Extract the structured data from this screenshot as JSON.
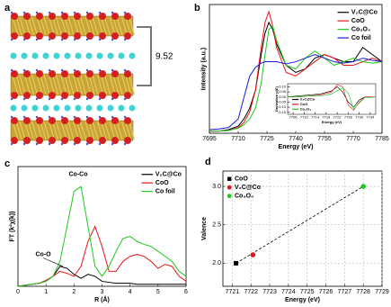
{
  "panel_a": {
    "label": "a",
    "annotation": "9.52"
  },
  "chart_data": [
    {
      "type": "line",
      "label": "b",
      "xlabel": "Energy (eV)",
      "ylabel": "Intensity (a.u.)",
      "xlim": [
        7695,
        7785
      ],
      "xticks": [
        7695,
        7710,
        7725,
        7740,
        7755,
        7770,
        7785
      ],
      "ylim": [
        0,
        1.8
      ],
      "legend": "upper right",
      "x": [
        7695,
        7700,
        7705,
        7710,
        7713,
        7716,
        7719,
        7722,
        7724,
        7726,
        7728,
        7730,
        7735,
        7740,
        7745,
        7750,
        7755,
        7760,
        7765,
        7770,
        7775,
        7780,
        7785
      ],
      "series": [
        {
          "name": "V₂C@Co",
          "color": "#000000",
          "values": [
            0.03,
            0.03,
            0.05,
            0.1,
            0.2,
            0.35,
            0.6,
            1.1,
            1.4,
            1.55,
            1.45,
            1.25,
            0.95,
            0.85,
            0.9,
            1.05,
            1.1,
            1.05,
            1.0,
            1.0,
            1.2,
            1.1,
            1.0
          ]
        },
        {
          "name": "CoO",
          "color": "#e8141b",
          "values": [
            0.03,
            0.03,
            0.04,
            0.08,
            0.15,
            0.3,
            0.6,
            1.2,
            1.55,
            1.7,
            1.5,
            1.2,
            0.85,
            0.8,
            0.9,
            1.0,
            1.1,
            1.05,
            0.95,
            0.95,
            1.0,
            1.05,
            1.0
          ]
        },
        {
          "name": "Co₃O₄",
          "color": "#1ec81e",
          "values": [
            0.03,
            0.03,
            0.04,
            0.07,
            0.12,
            0.2,
            0.35,
            0.7,
            1.1,
            1.45,
            1.5,
            1.3,
            0.95,
            0.9,
            1.05,
            1.15,
            1.05,
            0.95,
            1.0,
            1.05,
            1.0,
            0.98,
            1.0
          ]
        },
        {
          "name": "Co foil",
          "color": "#1a1adc",
          "values": [
            0.05,
            0.06,
            0.08,
            0.2,
            0.5,
            0.8,
            0.92,
            0.98,
            1.0,
            1.0,
            1.0,
            1.0,
            0.97,
            1.0,
            1.05,
            1.1,
            1.05,
            1.0,
            0.98,
            1.0,
            1.05,
            1.02,
            1.0
          ]
        }
      ]
    },
    {
      "type": "line",
      "xlabel": "Energy (eV)",
      "ylabel": "Derivative μ(E)",
      "xlim": [
        7704,
        7736
      ],
      "xticks": [
        7706,
        7710,
        7714,
        7718,
        7722,
        7726,
        7730,
        7734
      ],
      "ylim": [
        -0.17,
        0.13
      ],
      "yticks": [
        {
          "value": 0.1,
          "label": "0.10"
        },
        {
          "value": 0.05,
          "label": "0.05"
        },
        {
          "value": 0,
          "label": "0.00"
        },
        {
          "value": -0.05,
          "label": "-0.05"
        },
        {
          "value": -0.1,
          "label": "-0.10"
        },
        {
          "value": -0.15,
          "label": "-0.15"
        }
      ],
      "legend": "lower left",
      "x": [
        7704,
        7708,
        7712,
        7716,
        7720,
        7722,
        7724,
        7726,
        7728,
        7730,
        7732,
        7736
      ],
      "series": [
        {
          "name": "V₂C@Co",
          "color": "#000000",
          "values": [
            0,
            0.01,
            0.02,
            0.03,
            0.06,
            0.1,
            0.05,
            -0.05,
            -0.1,
            -0.03,
            0,
            0
          ]
        },
        {
          "name": "CoO",
          "color": "#e8141b",
          "values": [
            0,
            0,
            0.01,
            0.02,
            0.05,
            0.12,
            0.1,
            -0.08,
            -0.13,
            -0.05,
            0,
            0
          ]
        },
        {
          "name": "Co₃O₄",
          "color": "#1ec81e",
          "values": [
            0,
            0,
            0.01,
            0.01,
            0.03,
            0.06,
            0.09,
            0.04,
            -0.12,
            -0.06,
            -0.01,
            0
          ]
        }
      ]
    },
    {
      "type": "line",
      "label": "c",
      "xlabel": "R (Å)",
      "ylabel": "FT (k²χ(k))",
      "xlim": [
        0,
        6
      ],
      "xticks": [
        0,
        1,
        2,
        3,
        4,
        5,
        6
      ],
      "ylim": [
        0,
        1.2
      ],
      "legend": "upper right",
      "annotations": [
        "Co-Co",
        "Co-O"
      ],
      "x": [
        0,
        0.25,
        0.5,
        0.75,
        1,
        1.25,
        1.5,
        1.75,
        2,
        2.25,
        2.5,
        2.75,
        3,
        3.25,
        3.5,
        3.75,
        4,
        4.25,
        4.5,
        4.75,
        5,
        5.25,
        5.5,
        5.75,
        6
      ],
      "series": [
        {
          "name": "V₂C@Co",
          "color": "#000000",
          "values": [
            0,
            0.01,
            0.02,
            0.03,
            0.05,
            0.1,
            0.2,
            0.18,
            0.12,
            0.08,
            0.12,
            0.1,
            0.05,
            0.04,
            0.03,
            0.03,
            0.03,
            0.02,
            0.02,
            0.02,
            0.02,
            0.02,
            0.02,
            0.02,
            0.02
          ]
        },
        {
          "name": "CoO",
          "color": "#e8141b",
          "values": [
            0,
            0.01,
            0.02,
            0.03,
            0.06,
            0.1,
            0.15,
            0.13,
            0.1,
            0.2,
            0.45,
            0.6,
            0.4,
            0.15,
            0.15,
            0.25,
            0.3,
            0.32,
            0.3,
            0.25,
            0.18,
            0.22,
            0.2,
            0.1,
            0.05
          ]
        },
        {
          "name": "Co foil",
          "color": "#1ec81e",
          "values": [
            0,
            0.01,
            0.02,
            0.03,
            0.05,
            0.1,
            0.25,
            0.6,
            0.95,
            1.0,
            0.6,
            0.2,
            0.1,
            0.2,
            0.35,
            0.48,
            0.5,
            0.45,
            0.42,
            0.4,
            0.35,
            0.3,
            0.25,
            0.15,
            0.1
          ]
        }
      ]
    },
    {
      "type": "scatter",
      "label": "d",
      "xlabel": "Energy (eV)",
      "ylabel": "Valence",
      "xlim": [
        7720.5,
        7729
      ],
      "xticks": [
        7721,
        7722,
        7723,
        7724,
        7725,
        7726,
        7727,
        7728,
        7729
      ],
      "ylim": [
        1.7,
        3.2
      ],
      "yticks": [
        {
          "value": 2,
          "label": "2.0"
        },
        {
          "value": 2.5,
          "label": "2.5"
        },
        {
          "value": 3,
          "label": "3.0"
        }
      ],
      "grid": true,
      "fit_line": true,
      "legend": "upper left",
      "series": [
        {
          "name": "CoO",
          "color": "#000000",
          "marker": "square",
          "x": [
            7721.2
          ],
          "values": [
            2.0
          ]
        },
        {
          "name": "V₂C@Co",
          "color": "#e8141b",
          "marker": "circle",
          "x": [
            7722.1
          ],
          "values": [
            2.11
          ]
        },
        {
          "name": "Co₃O₄",
          "color": "#1ec81e",
          "marker": "circle",
          "x": [
            7728
          ],
          "values": [
            3.0
          ]
        }
      ]
    }
  ]
}
